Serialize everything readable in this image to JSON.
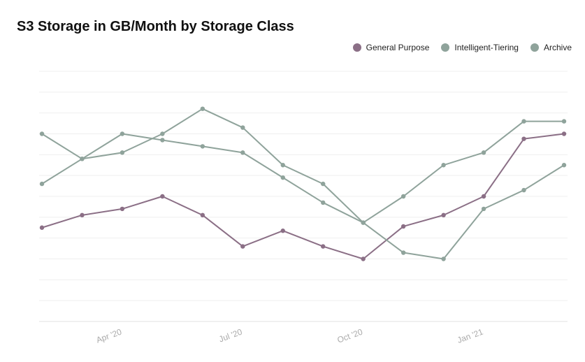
{
  "chart_data": {
    "type": "line",
    "title": "S3 Storage in GB/Month by Storage Class",
    "x": [
      "2020-02",
      "2020-03",
      "2020-04",
      "2020-05",
      "2020-06",
      "2020-07",
      "2020-08",
      "2020-09",
      "2020-10",
      "2020-11",
      "2020-12",
      "2021-01",
      "2021-02",
      "2021-03"
    ],
    "xticks": [
      {
        "x": "2020-04",
        "label": "Apr '20"
      },
      {
        "x": "2020-07",
        "label": "Jul '20"
      },
      {
        "x": "2020-10",
        "label": "Oct '20"
      },
      {
        "x": "2021-01",
        "label": "Jan '21"
      }
    ],
    "ylim": [
      0,
      40
    ],
    "yaxis_labels_visible": false,
    "grid": true,
    "legend_position": "top-right",
    "series": [
      {
        "name": "General Purpose",
        "color": "#8b6f86",
        "values": [
          15,
          17,
          18,
          20,
          17,
          12,
          14.5,
          12,
          10,
          15.2,
          17,
          20,
          29.2,
          30
        ]
      },
      {
        "name": "Intelligent-Tiering",
        "color": "#8fa39b",
        "values": [
          30,
          26,
          30,
          29,
          28,
          27,
          23,
          19,
          15.8,
          11,
          10,
          18,
          21,
          25
        ]
      },
      {
        "name": "Archive",
        "color": "#8fa39b",
        "values": [
          22,
          26,
          27,
          30,
          34,
          31,
          25,
          22,
          15.8,
          20,
          25,
          27,
          32,
          32
        ]
      }
    ]
  }
}
